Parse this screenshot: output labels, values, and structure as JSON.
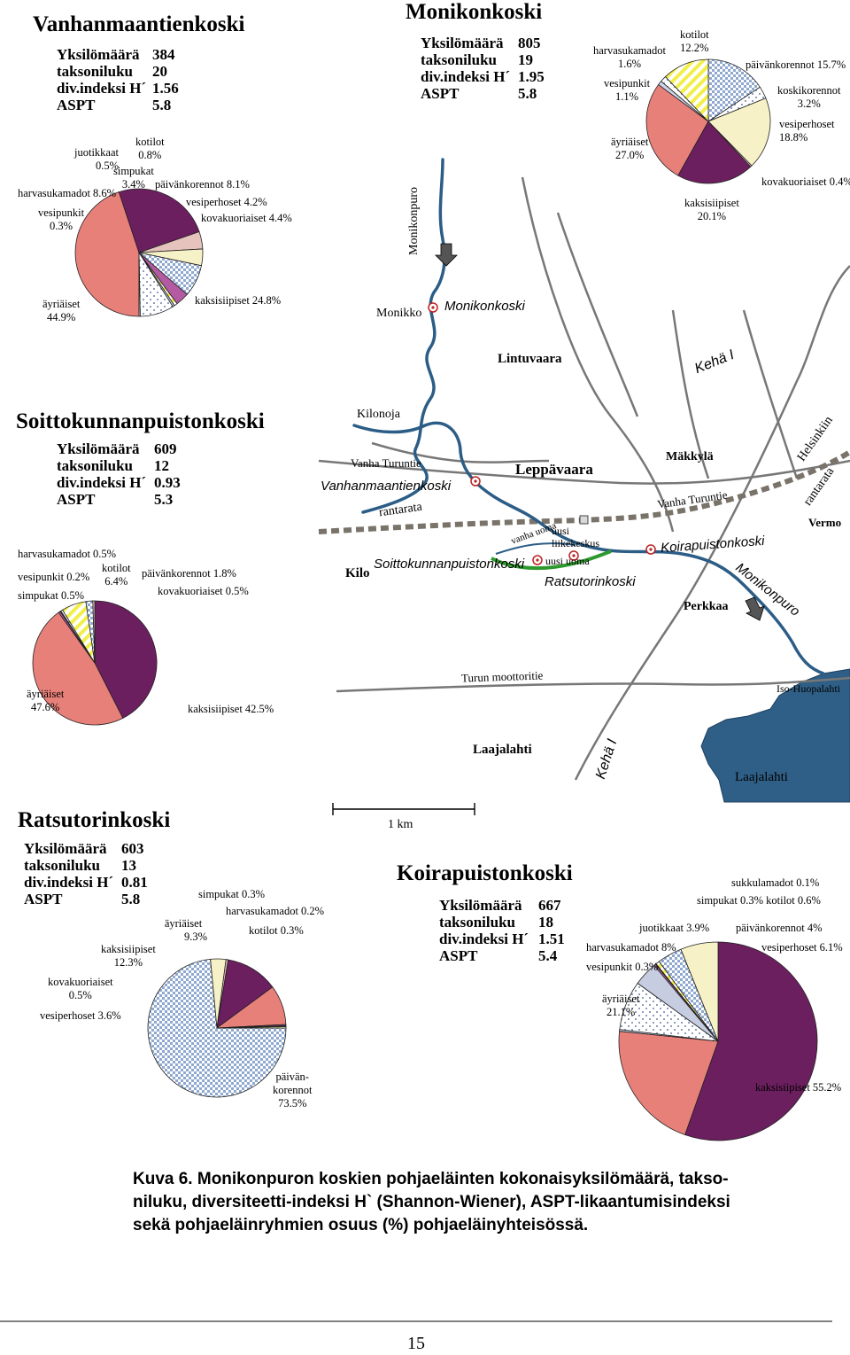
{
  "colors": {
    "ayriaiset": "#e8807a",
    "kaksisiipiset": "#6b1f5e",
    "paivankorennot": "#a8bedc",
    "vesiperhoset": "#f6f1c6",
    "kovakuoriaiset": "#e6c3bd",
    "simpukat": "#b35aa2",
    "vesipunkit": "#cdd6ea",
    "harvasukamadot": "#cdd6ea",
    "kotilot": "#f2ee4a",
    "koskikorennot": "#c6cde0",
    "juotikkaat": "#c6cde0",
    "river": "#2c5d86",
    "road": "#6e6e6e",
    "rail": "#7a736a",
    "lake": "#2f5f86",
    "new_channel": "#2e9a2e"
  },
  "sites": {
    "vanhanmaantienkoski": {
      "title": "Vanhanmaantienkoski",
      "stats": [
        [
          "Yksilömäärä",
          "384"
        ],
        [
          "taksoniluku",
          "20"
        ],
        [
          "div.indeksi H´",
          "1.56"
        ],
        [
          "ASPT",
          "5.8"
        ]
      ],
      "labels": {
        "kotilot": [
          "kotilot",
          "0.8%"
        ],
        "juotikkaat": [
          "juotikkaat",
          "0.5%"
        ],
        "simpukat": [
          "simpukat",
          "3.4%"
        ],
        "paivankorennot": "päivänkorennot 8.1%",
        "harvasukamadot": "harvasukamadot 8.6%",
        "vesiperhoset": "vesiperhoset 4.2%",
        "vesipunkit": [
          "vesipunkit",
          "0.3%"
        ],
        "kovakuoriaiset": "kovakuoriaiset 4.4%",
        "ayriaiset": [
          "äyriäiset",
          "44.9%"
        ],
        "kaksisiipiset": "kaksisiipiset 24.8%"
      }
    },
    "monikonkoski": {
      "title": "Monikonkoski",
      "stats": [
        [
          "Yksilömäärä",
          "805"
        ],
        [
          "taksoniluku",
          "19"
        ],
        [
          "div.indeksi H´",
          "1.95"
        ],
        [
          "ASPT",
          "5.8"
        ]
      ],
      "labels": {
        "harvasukamadot": [
          "harvasukamadot",
          "1.6%"
        ],
        "vesipunkit": [
          "vesipunkit",
          "1.1%"
        ],
        "kotilot": [
          "kotilot",
          "12.2%"
        ],
        "paivankorennot": "päivänkorennot 15.7%",
        "koskikorennot": [
          "koskikorennot",
          "3.2%"
        ],
        "ayriaiset": [
          "äyriäiset",
          "27.0%"
        ],
        "vesiperhoset": [
          "vesiperhoset",
          "18.8%"
        ],
        "kovakuoriaiset": "kovakuoriaiset 0.4%",
        "kaksisiipiset": [
          "kaksisiipiset",
          "20.1%"
        ]
      }
    },
    "soittokunnanpuistonkoski": {
      "title": "Soittokunnanpuistonkoski",
      "stats": [
        [
          "Yksilömäärä",
          "609"
        ],
        [
          "taksoniluku",
          "12"
        ],
        [
          "div.indeksi H´",
          "0.93"
        ],
        [
          "ASPT",
          "5.3"
        ]
      ],
      "labels": {
        "harvasukamadot": "harvasukamadot 0.5%",
        "kotilot": [
          "kotilot",
          "6.4%"
        ],
        "vesipunkit": "vesipunkit 0.2%",
        "paivankorennot": "päivänkorennot 1.8%",
        "simpukat": "simpukat 0.5%",
        "kovakuoriaiset": "kovakuoriaiset 0.5%",
        "ayriaiset": [
          "äyriäiset",
          "47.6%"
        ],
        "kaksisiipiset": "kaksisiipiset 42.5%"
      }
    },
    "ratsutorinkoski": {
      "title": "Ratsutorinkoski",
      "stats": [
        [
          "Yksilömäärä",
          "603"
        ],
        [
          "taksoniluku",
          "13"
        ],
        [
          "div.indeksi H´",
          "0.81"
        ],
        [
          "ASPT",
          "5.8"
        ]
      ],
      "labels": {
        "simpukat": "simpukat 0.3%",
        "harvasukamadot": "harvasukamadot 0.2%",
        "ayriaiset": [
          "äyriäiset",
          "9.3%"
        ],
        "kotilot": "kotilot 0.3%",
        "kaksisiipiset": [
          "kaksisiipiset",
          "12.3%"
        ],
        "kovakuoriaiset": [
          "kovakuoriaiset",
          "0.5%"
        ],
        "vesiperhoset": "vesiperhoset 3.6%",
        "paivankorennot": [
          "päivän-",
          "korennot",
          "73.5%"
        ]
      }
    },
    "koirapuistonkoski": {
      "title": "Koirapuistonkoski",
      "stats": [
        [
          "Yksilömäärä",
          "667"
        ],
        [
          "taksoniluku",
          "18"
        ],
        [
          "div.indeksi H´",
          "1.51"
        ],
        [
          "ASPT",
          "5.4"
        ]
      ],
      "labels": {
        "sukkulamadot": "sukkulamadot 0.1%",
        "simpukat_kotilot": "simpukat 0.3%  kotilot 0.6%",
        "juotikkaat": "juotikkaat 3.9%",
        "paivankorennot": "päivänkorennot 4%",
        "harvasukamadot": "harvasukamadot 8%",
        "vesiperhoset": "vesiperhoset 6.1%",
        "vesipunkit": "vesipunkit 0.3%",
        "ayriaiset": [
          "äyriäiset",
          "21.1%"
        ],
        "kaksisiipiset": "kaksisiipiset 55.2%"
      }
    }
  },
  "chart_data": [
    {
      "type": "pie",
      "title": "Vanhanmaantienkoski",
      "categories": [
        "äyriäiset",
        "kaksisiipiset",
        "kovakuoriaiset",
        "vesiperhoset",
        "päivänkorennot",
        "simpukat",
        "kotilot",
        "juotikkaat",
        "harvasukamadot",
        "vesipunkit"
      ],
      "values": [
        44.9,
        24.8,
        4.4,
        4.2,
        8.1,
        3.4,
        0.8,
        0.5,
        8.6,
        0.3
      ]
    },
    {
      "type": "pie",
      "title": "Monikonkoski",
      "categories": [
        "päivänkorennot",
        "koskikorennot",
        "vesiperhoset",
        "kovakuoriaiset",
        "kaksisiipiset",
        "äyriäiset",
        "vesipunkit",
        "harvasukamadot",
        "kotilot"
      ],
      "values": [
        15.7,
        3.2,
        18.8,
        0.4,
        20.1,
        27.0,
        1.1,
        1.6,
        12.2
      ]
    },
    {
      "type": "pie",
      "title": "Soittokunnanpuistonkoski",
      "categories": [
        "kaksisiipiset",
        "äyriäiset",
        "simpukat",
        "vesipunkit",
        "harvasukamadot",
        "kotilot",
        "päivänkorennot",
        "kovakuoriaiset"
      ],
      "values": [
        42.5,
        47.6,
        0.5,
        0.2,
        0.5,
        6.4,
        1.8,
        0.5
      ]
    },
    {
      "type": "pie",
      "title": "Ratsutorinkoski",
      "categories": [
        "päivänkorennot",
        "vesiperhoset",
        "kovakuoriaiset",
        "kaksisiipiset",
        "äyriäiset",
        "simpukat",
        "harvasukamadot",
        "kotilot"
      ],
      "values": [
        73.5,
        3.6,
        0.5,
        12.3,
        9.3,
        0.3,
        0.2,
        0.3
      ]
    },
    {
      "type": "pie",
      "title": "Koirapuistonkoski",
      "categories": [
        "kaksisiipiset",
        "äyriäiset",
        "vesipunkit",
        "harvasukamadot",
        "juotikkaat",
        "simpukat",
        "sukkulamadot",
        "kotilot",
        "päivänkorennot",
        "vesiperhoset"
      ],
      "values": [
        55.2,
        21.1,
        0.3,
        8.0,
        3.9,
        0.3,
        0.1,
        0.6,
        4.0,
        6.1
      ]
    }
  ],
  "map": {
    "labels": {
      "monikonpuro_upper": "Monikonpuro",
      "monikko": "Monikko",
      "monikonkoski": "Monikonkoski",
      "lintuvaara": "Lintuvaara",
      "kehae_upper": "Kehä I",
      "kilonoja": "Kilonoja",
      "vanha_turuntie_left": "Vanha Turuntie",
      "vanhanmaantienkoski": "Vanhanmaantienkoski",
      "leppavaara": "Leppävaara",
      "makkyla": "Mäkkylä",
      "helsinkiin": "Helsinkiin",
      "rantarata_right": "rantarata",
      "vanha_turuntie_right": "Vanha Turuntie",
      "vermo": "Vermo",
      "rantarata_left": "rantarata",
      "vanha_uoma": "vanha uoma",
      "uusi_liikekeskus": [
        "uusi",
        "liikekeskus"
      ],
      "uusi_uoma": "uusi uoma",
      "koirapuistonkoski": "Koirapuistonkoski",
      "kilo": "Kilo",
      "soittokunnanpuistonkoski": "Soittokunnanpuistonkoski",
      "ratsutorinkoski": "Ratsutorinkoski",
      "monikonpuro_lower": "Monikonpuro",
      "perkkaa": "Perkkaa",
      "turun_moottoritie": "Turun moottoritie",
      "iso_huopalahti": "Iso-Huopalahti",
      "laajalahti_land": "Laajalahti",
      "kehae_lower": "Kehä I",
      "laajalahti_water": "Laajalahti",
      "scale": "1 km"
    }
  },
  "caption": {
    "line1": "Kuva 6. Monikonpuron koskien pohjaeläinten kokonaisyksilömäärä, takso-",
    "line2": "niluku, diversiteetti-indeksi H` (Shannon-Wiener), ASPT-likaantumisindeksi",
    "line3": "sekä pohjaeläinryhmien osuus (%) pohjaeläinyhteisössä."
  },
  "page_number": "15"
}
